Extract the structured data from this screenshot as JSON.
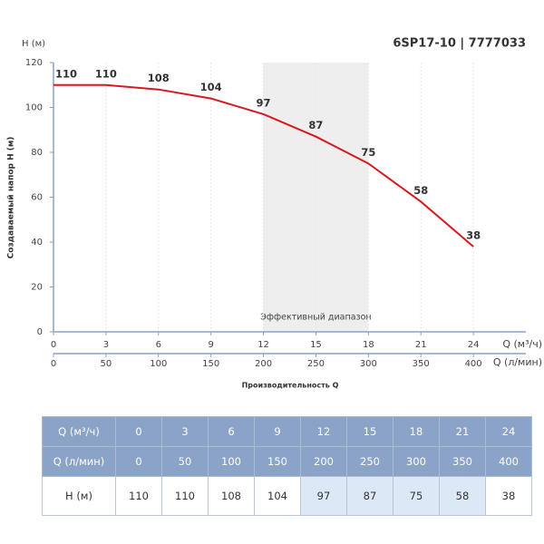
{
  "chart_data": {
    "type": "line",
    "title": "6SP17-10 | 7777033",
    "y_unit_label": "H (м)",
    "ylabel": "Создаваемый напор Н (м)",
    "xlabel": "Производительность Q",
    "x_unit_label": "Q (м³/ч)",
    "x2_unit_label": "Q (л/мин)",
    "x": [
      0,
      3,
      6,
      9,
      12,
      15,
      18,
      21,
      24
    ],
    "values": [
      110,
      110,
      108,
      104,
      97,
      87,
      75,
      58,
      38
    ],
    "color": "#d7191f",
    "xlim": [
      0,
      27
    ],
    "xticks": [
      0,
      3,
      6,
      9,
      12,
      15,
      18,
      21,
      24
    ],
    "x2lim": [
      0,
      450
    ],
    "x2ticks": [
      0,
      50,
      100,
      150,
      200,
      250,
      300,
      350,
      400
    ],
    "ylim": [
      0,
      120
    ],
    "yticks": [
      0,
      20,
      40,
      60,
      80,
      100,
      120
    ],
    "effective_range": [
      12,
      18
    ],
    "effective_label": "Эффективный диапазон",
    "grid": true
  },
  "table": {
    "rows": [
      [
        "Q (м³/ч)",
        0,
        3,
        6,
        9,
        12,
        15,
        18,
        21,
        24
      ],
      [
        "Q (л/мин)",
        0,
        50,
        100,
        150,
        200,
        250,
        300,
        350,
        400
      ],
      [
        "Н (м)",
        110,
        110,
        108,
        104,
        97,
        87,
        75,
        58,
        38
      ]
    ]
  }
}
